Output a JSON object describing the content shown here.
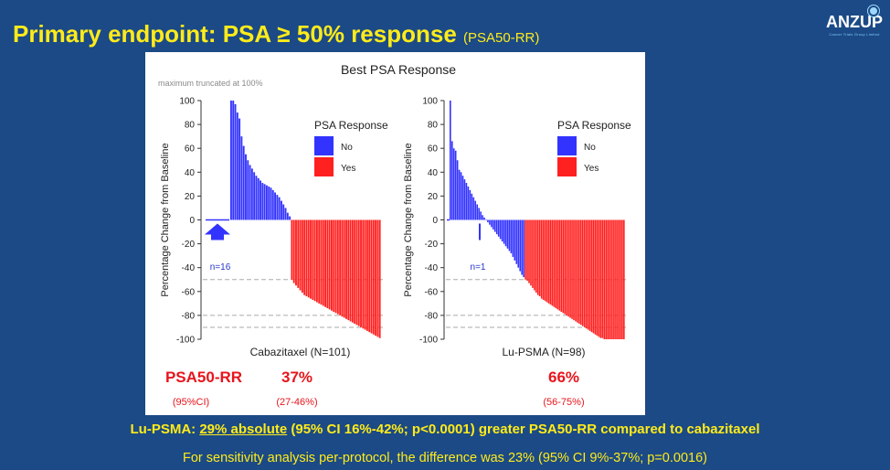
{
  "slide": {
    "title": "Primary endpoint: PSA ≥ 50% response",
    "title_sub": "(PSA50-RR)",
    "logo": "ANZUP",
    "logo_tag": "Cancer Trials Group Limited"
  },
  "figure": {
    "title": "Best PSA Response",
    "note": "maximum truncated at 100%",
    "rr_label": "PSA50-RR",
    "ci_label": "(95%CI)"
  },
  "findings": {
    "line1_prefix": "Lu-PSMA: ",
    "line1_underlined": "29% absolute",
    "line1_suffix": " (95% CI 16%-42%; p<0.0001) greater PSA50-RR compared to cabazitaxel",
    "line2": "For sensitivity analysis per-protocol, the difference was 23% (95% CI 9%-37%; p=0.0016)"
  },
  "colors": {
    "no": "#3333ff",
    "yes": "#ff2020",
    "rr": "#e8141c",
    "yellow": "#ffeb1a",
    "bg": "#1b4a86"
  },
  "chart_data": [
    {
      "type": "bar",
      "title": "Best PSA Response",
      "xlabel": "Cabazitaxel (N=101)",
      "ylabel": "Percentage Change from Baseline",
      "ylim": [
        -100,
        100
      ],
      "yticks": [
        100,
        80,
        60,
        40,
        20,
        0,
        -20,
        -40,
        -60,
        -80,
        -100
      ],
      "reference_lines": [
        -50,
        -80,
        -90
      ],
      "legend": {
        "title": "PSA Response",
        "entries": [
          "No",
          "Yes"
        ],
        "placement": "top-right"
      },
      "annotation": "n=16",
      "zero_change_count": 16,
      "response_rate": "37%",
      "ci": "(27-46%)",
      "series": [
        {
          "name": "No",
          "values": [
            100,
            100,
            97,
            90,
            85,
            70,
            62,
            55,
            50,
            46,
            43,
            40,
            37,
            35,
            33,
            31,
            30,
            29,
            28,
            27,
            25,
            23,
            21,
            19,
            16,
            13,
            10,
            6,
            3
          ]
        },
        {
          "name": "Yes",
          "values": [
            -50,
            -53,
            -55,
            -57,
            -59,
            -61,
            -63,
            -64,
            -65,
            -66,
            -67,
            -68,
            -69,
            -70,
            -71,
            -72,
            -73,
            -74,
            -75,
            -76,
            -77,
            -78,
            -79,
            -80,
            -81,
            -82,
            -83,
            -84,
            -85,
            -86,
            -87,
            -88,
            -89,
            -90,
            -91,
            -92,
            -93,
            -94,
            -95,
            -96,
            -97,
            -98,
            -99
          ]
        }
      ]
    },
    {
      "type": "bar",
      "xlabel": "Lu-PSMA (N=98)",
      "ylabel": "Percentage Change from Baseline",
      "ylim": [
        -100,
        100
      ],
      "yticks": [
        100,
        80,
        60,
        40,
        20,
        0,
        -20,
        -40,
        -60,
        -80,
        -100
      ],
      "reference_lines": [
        -50,
        -80,
        -90
      ],
      "legend": {
        "title": "PSA Response",
        "entries": [
          "No",
          "Yes"
        ],
        "placement": "top-right"
      },
      "annotation": "n=1",
      "zero_change_count": 1,
      "response_rate": "66%",
      "ci": "(56-75%)",
      "series": [
        {
          "name": "No",
          "values": [
            100,
            66,
            60,
            58,
            50,
            42,
            40,
            37,
            34,
            31,
            28,
            25,
            22,
            19,
            16,
            13,
            10,
            7,
            4,
            2,
            0,
            -2,
            -4,
            -6,
            -8,
            -10,
            -12,
            -14,
            -16,
            -18,
            -20,
            -22,
            -24,
            -26,
            -28,
            -31,
            -34,
            -37,
            -40,
            -43,
            -46,
            -48
          ]
        },
        {
          "name": "Yes",
          "values": [
            -50,
            -51,
            -53,
            -55,
            -57,
            -59,
            -61,
            -63,
            -64,
            -66,
            -67,
            -68,
            -69,
            -70,
            -71,
            -72,
            -73,
            -74,
            -75,
            -76,
            -77,
            -78,
            -79,
            -80,
            -81,
            -82,
            -83,
            -84,
            -85,
            -86,
            -87,
            -88,
            -89,
            -90,
            -91,
            -92,
            -93,
            -94,
            -95,
            -96,
            -97,
            -98,
            -99,
            -99,
            -100,
            -100,
            -100,
            -100,
            -100,
            -100,
            -100,
            -100,
            -100,
            -100,
            -100,
            -100
          ]
        }
      ]
    }
  ]
}
